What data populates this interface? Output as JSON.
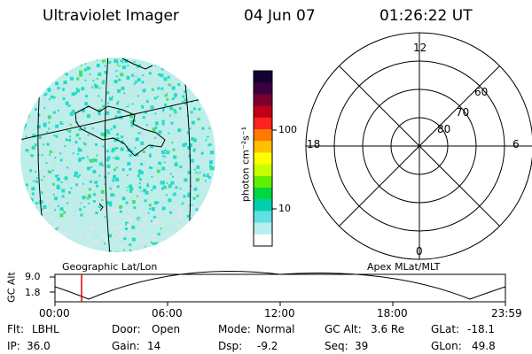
{
  "header": {
    "title": "Ultraviolet Imager",
    "date": "04 Jun 07",
    "time": "01:26:22 UT"
  },
  "image_panel": {
    "caption": "Geographic Lat/Lon",
    "colors": {
      "dominant": "#b9ece8",
      "bright": "#22dcc8",
      "peak": "#3fe36a",
      "dim": "#d9e8e6"
    }
  },
  "colorbar": {
    "unit_label": "photon cm⁻²s⁻¹",
    "tick_labels": [
      "100",
      "10"
    ],
    "colors_top_to_bottom": [
      "#140032",
      "#3a0040",
      "#7a0030",
      "#c00018",
      "#ff2020",
      "#ff7a00",
      "#ffc000",
      "#ffff00",
      "#c8ff00",
      "#60f000",
      "#00d840",
      "#00d0b0",
      "#60e0e0",
      "#b8eeee",
      "#ffffff"
    ]
  },
  "polar_plot": {
    "caption": "Apex MLat/MLT",
    "mlt_labels": {
      "top": "12",
      "left": "18",
      "right": "6",
      "bottom": "0"
    },
    "lat_labels": [
      "80",
      "70",
      "60"
    ]
  },
  "altitude_strip": {
    "axis_label": "GC Alt",
    "y_ticks": [
      "9.0",
      "1.8"
    ],
    "x_ticks": [
      "00:00",
      "06:00",
      "12:00",
      "18:00",
      "23:59"
    ],
    "current_time_marker_color": "#e00000"
  },
  "status": {
    "row1": [
      {
        "label": "Flt:",
        "value": "LBHL"
      },
      {
        "label": "Door:",
        "value": "Open"
      },
      {
        "label": "Mode:",
        "value": "Normal"
      },
      {
        "label": "GC Alt:",
        "value": "3.6 Re"
      },
      {
        "label": "GLat:",
        "value": "-18.1"
      }
    ],
    "row2": [
      {
        "label": "IP:",
        "value": "36.0"
      },
      {
        "label": "Gain:",
        "value": "14"
      },
      {
        "label": "Dsp:",
        "value": "-9.2"
      },
      {
        "label": "Seq:",
        "value": "39"
      },
      {
        "label": "GLon:",
        "value": "49.8"
      }
    ]
  }
}
